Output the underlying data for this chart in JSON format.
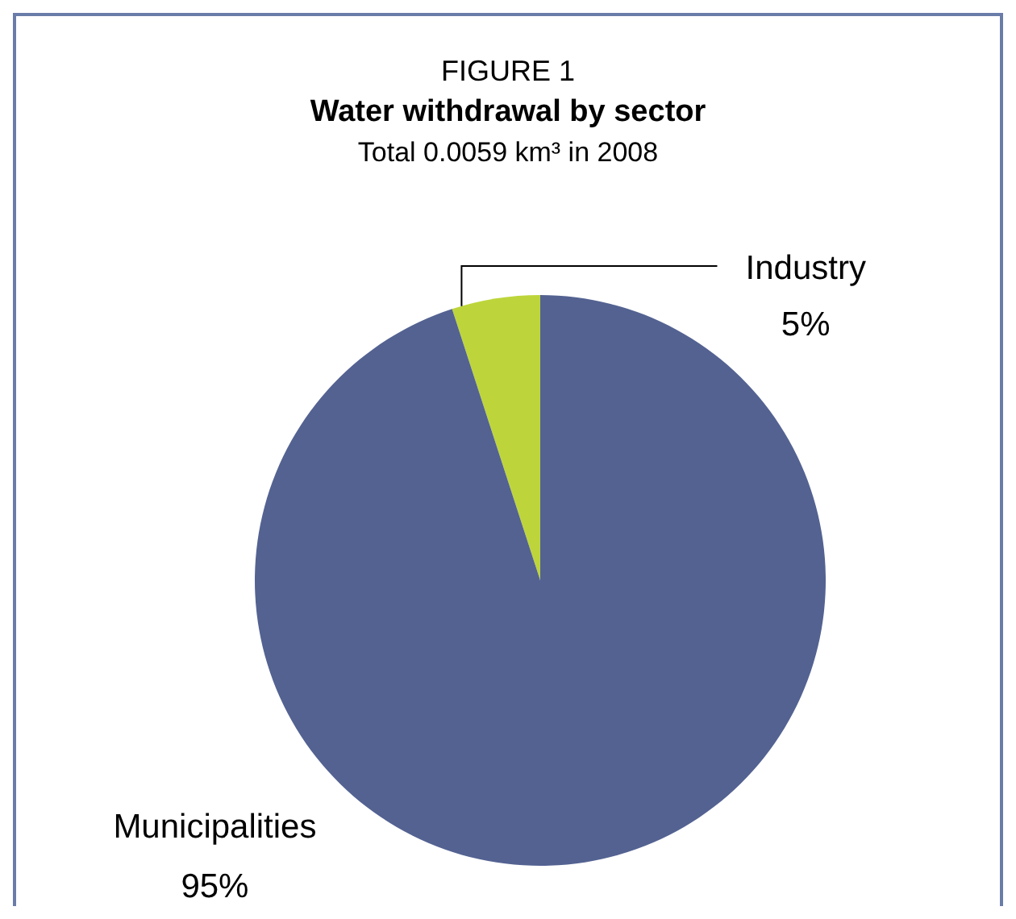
{
  "chart_data": {
    "type": "pie",
    "title": "Water withdrawal by sector",
    "subtitle": "Total 0.0059 km³ in 2008",
    "annotations": [
      "FIGURE 1"
    ],
    "categories": [
      "Industry",
      "Municipalities"
    ],
    "values": [
      5,
      95
    ],
    "value_labels": [
      "5%",
      "95%"
    ],
    "colors": [
      "#bdd53b",
      "#536291"
    ],
    "legend": false
  }
}
